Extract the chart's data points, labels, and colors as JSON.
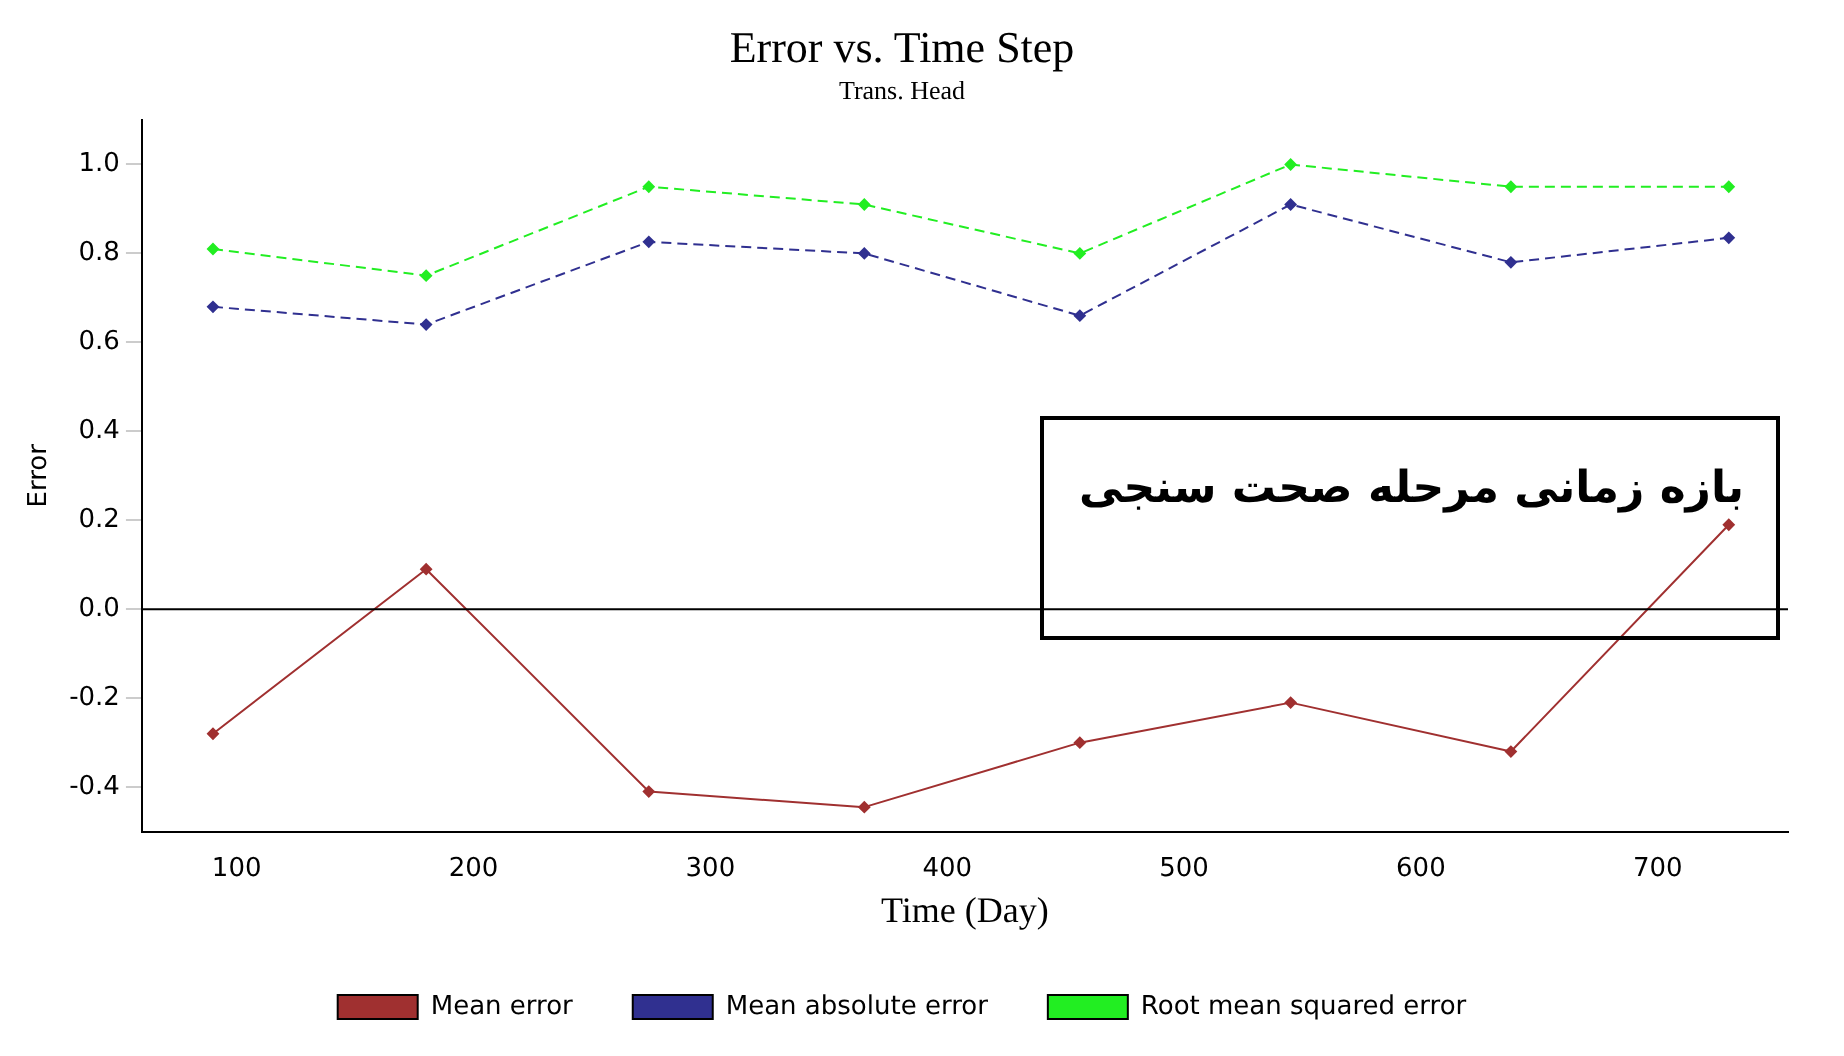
{
  "chart_data": {
    "type": "line",
    "title": "Error vs. Time Step",
    "subtitle": "Trans. Head",
    "xlabel": "Time (Day)",
    "ylabel": "Error",
    "x": [
      90,
      180,
      274,
      365,
      456,
      545,
      638,
      730
    ],
    "series": [
      {
        "name": "Mean error",
        "color": "#a03030",
        "values": [
          -0.28,
          0.09,
          -0.41,
          -0.445,
          -0.3,
          -0.21,
          -0.32,
          0.19
        ],
        "line_style": "solid"
      },
      {
        "name": "Mean absolute error",
        "color": "#303090",
        "values": [
          0.68,
          0.64,
          0.826,
          0.8,
          0.66,
          0.91,
          0.78,
          0.835
        ],
        "line_style": "dashed"
      },
      {
        "name": "Root mean squared error",
        "color": "#22ee22",
        "values": [
          0.81,
          0.75,
          0.95,
          0.91,
          0.8,
          1.0,
          0.95,
          0.95
        ],
        "line_style": "dashed"
      }
    ],
    "xlim": [
      60,
      755
    ],
    "xticks": [
      100,
      200,
      300,
      400,
      500,
      600,
      700
    ],
    "ylim": [
      -0.5,
      1.1
    ],
    "yticks": [
      {
        "value": -0.4,
        "label": "-0.4"
      },
      {
        "value": -0.2,
        "label": "-0.2"
      },
      {
        "value": 0,
        "label": "0.0"
      },
      {
        "value": 0.2,
        "label": "0.2"
      },
      {
        "value": 0.4,
        "label": "0.4"
      },
      {
        "value": 0.6,
        "label": "0.6"
      },
      {
        "value": 0.8,
        "label": "0.8"
      },
      {
        "value": 1,
        "label": "1.0"
      }
    ],
    "ref_lines": [
      {
        "axis": "y",
        "value": 0,
        "color": "#000000"
      }
    ],
    "annotations": [
      "بازه زمانی مرحله صحت سنجی"
    ],
    "grid": false,
    "legend": "bottom",
    "marker": "diamond"
  }
}
